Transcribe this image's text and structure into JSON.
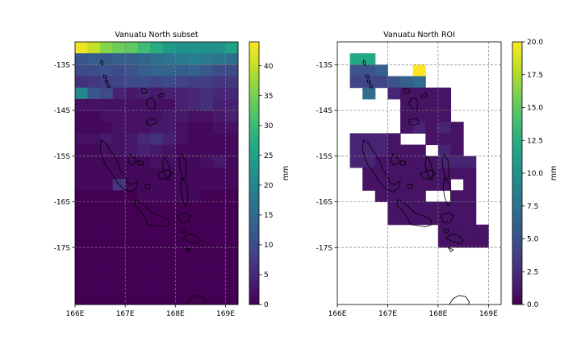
{
  "chart_data": [
    {
      "type": "heatmap",
      "title": "Vanuatu North subset",
      "xlabel": "",
      "ylabel": "",
      "xlim": [
        166.0,
        169.25
      ],
      "ylim": [
        -18.25,
        -12.5
      ],
      "x_ticks": [
        166,
        167,
        168,
        169
      ],
      "x_tick_labels": [
        "166E",
        "167E",
        "168E",
        "169E"
      ],
      "y_ticks": [
        -13,
        -14,
        -15,
        -16,
        -17
      ],
      "y_tick_labels": [
        "-13S",
        "-14S",
        "-15S",
        "-16S",
        "-17S"
      ],
      "grid": true,
      "colorbar": {
        "label": "mm",
        "min": 0,
        "max": 44,
        "ticks": [
          0,
          5,
          10,
          15,
          20,
          25,
          30,
          35,
          40
        ],
        "tick_labels": [
          "0",
          "5",
          "10",
          "15",
          "20",
          "25",
          "30",
          "35",
          "40"
        ]
      },
      "cell_size_deg": 0.25,
      "origin": {
        "lon": 166.0,
        "lat_top": -12.5
      },
      "values": [
        [
          43,
          40,
          36,
          34,
          33,
          30,
          27,
          24,
          22,
          22,
          22,
          22,
          25
        ],
        [
          12,
          13,
          12,
          13,
          13,
          14,
          16,
          17,
          18,
          19,
          18,
          17,
          16
        ],
        [
          10,
          10,
          11,
          10,
          11,
          13,
          14,
          14,
          13,
          14,
          12,
          10,
          10
        ],
        [
          6,
          7,
          8,
          9,
          10,
          10,
          9,
          10,
          9,
          8,
          8,
          7,
          7
        ],
        [
          20,
          12,
          10,
          4,
          3,
          4,
          3,
          4,
          4,
          5,
          6,
          5,
          5
        ],
        [
          2,
          2,
          2,
          2,
          2,
          2,
          2,
          2,
          4,
          5,
          6,
          4,
          4
        ],
        [
          1,
          1,
          2,
          2,
          2,
          2,
          2,
          3,
          3,
          2,
          2,
          3,
          4
        ],
        [
          1,
          1,
          1,
          2,
          2,
          2,
          3,
          3,
          2,
          1,
          1,
          2,
          2
        ],
        [
          2,
          2,
          3,
          2,
          3,
          5,
          6,
          4,
          2,
          1,
          1,
          1,
          1
        ],
        [
          1,
          1,
          2,
          2,
          3,
          4,
          3,
          2,
          1,
          1,
          1,
          1,
          1
        ],
        [
          1,
          1,
          1,
          1,
          1,
          1,
          2,
          2,
          1,
          1,
          2,
          3,
          1
        ],
        [
          1,
          1,
          1,
          1,
          1,
          1,
          1,
          1,
          1,
          1,
          1,
          1,
          1
        ],
        [
          1,
          1,
          1,
          7,
          1,
          1,
          1,
          1,
          1,
          1,
          1,
          1,
          1
        ],
        [
          0,
          0,
          0,
          0,
          0,
          1,
          1,
          1,
          1,
          1,
          0,
          0,
          0
        ],
        [
          0,
          0,
          0,
          0,
          0,
          0,
          0,
          0,
          0,
          0,
          0,
          0,
          0
        ],
        [
          0,
          0,
          0,
          0,
          0,
          0,
          0,
          0,
          0,
          0,
          0,
          0,
          0
        ],
        [
          0,
          0,
          0,
          0,
          0,
          0,
          0,
          0,
          0,
          0,
          0,
          0,
          0
        ],
        [
          0,
          0,
          0,
          0,
          0,
          0,
          0,
          0,
          0,
          0,
          0,
          0,
          0
        ],
        [
          0,
          0,
          0,
          0,
          0,
          0,
          0,
          0,
          0,
          0,
          0,
          0,
          0
        ],
        [
          0,
          0,
          0,
          0,
          0,
          0,
          0,
          0,
          0,
          0,
          0,
          0,
          0
        ],
        [
          0,
          0,
          0,
          0,
          0,
          0,
          0,
          0,
          0,
          0,
          0,
          0,
          0
        ],
        [
          0,
          0,
          0,
          0,
          0,
          0,
          0,
          0,
          0,
          0,
          0,
          0,
          0
        ],
        [
          0,
          0,
          0,
          0,
          0,
          0,
          0,
          0,
          0,
          0,
          0,
          0,
          0
        ]
      ]
    },
    {
      "type": "heatmap",
      "title": "Vanuatu North ROI",
      "xlabel": "",
      "ylabel": "",
      "xlim": [
        166.0,
        169.25
      ],
      "ylim": [
        -18.25,
        -12.5
      ],
      "x_ticks": [
        166,
        167,
        168,
        169
      ],
      "x_tick_labels": [
        "166E",
        "167E",
        "168E",
        "169E"
      ],
      "y_ticks": [
        -13,
        -14,
        -15,
        -16,
        -17
      ],
      "y_tick_labels": [
        "-13S",
        "-14S",
        "-15S",
        "-16S",
        "-17S"
      ],
      "grid": true,
      "colorbar": {
        "label": "mm",
        "min": 0,
        "max": 20,
        "ticks": [
          0,
          2.5,
          5,
          7.5,
          10,
          12.5,
          15,
          17.5,
          20
        ],
        "tick_labels": [
          "0.0",
          "2.5",
          "5.0",
          "7.5",
          "10.0",
          "12.5",
          "15.0",
          "17.5",
          "20.0"
        ]
      },
      "cell_size_deg": 0.25,
      "origin": {
        "lon": 166.0,
        "lat_top": -12.5
      },
      "values": [
        [
          null,
          null,
          null,
          null,
          null,
          null,
          null,
          null,
          null,
          null,
          null,
          null,
          null
        ],
        [
          null,
          12,
          12,
          null,
          null,
          null,
          null,
          null,
          null,
          null,
          null,
          null,
          null
        ],
        [
          null,
          5,
          5,
          6,
          null,
          null,
          20,
          null,
          null,
          null,
          null,
          null,
          null
        ],
        [
          null,
          4,
          4,
          4,
          5,
          6,
          7,
          null,
          null,
          null,
          null,
          null,
          null
        ],
        [
          null,
          null,
          7,
          null,
          2,
          1,
          1,
          1,
          1,
          null,
          null,
          null,
          null
        ],
        [
          null,
          null,
          null,
          null,
          null,
          1,
          1,
          1,
          1,
          null,
          null,
          null,
          null
        ],
        [
          null,
          null,
          null,
          null,
          null,
          1,
          1,
          1,
          1,
          null,
          null,
          null,
          null
        ],
        [
          null,
          null,
          null,
          null,
          null,
          1,
          2,
          1,
          2,
          1,
          null,
          null,
          null
        ],
        [
          null,
          2,
          2,
          2,
          1,
          null,
          null,
          1,
          1,
          1,
          null,
          null,
          null
        ],
        [
          null,
          2,
          2,
          2,
          1,
          1,
          1,
          null,
          2,
          1,
          null,
          null,
          null
        ],
        [
          null,
          2,
          2,
          1,
          1,
          1,
          1,
          1,
          2,
          2,
          2,
          null,
          null
        ],
        [
          null,
          null,
          1,
          1,
          1,
          1,
          1,
          1,
          1,
          1,
          1,
          null,
          null
        ],
        [
          null,
          null,
          1,
          1,
          1,
          1,
          1,
          1,
          1,
          null,
          1,
          null,
          null
        ],
        [
          null,
          null,
          null,
          1,
          1,
          1,
          1,
          null,
          null,
          1,
          1,
          null,
          null
        ],
        [
          null,
          null,
          null,
          null,
          1,
          1,
          1,
          1,
          1,
          1,
          1,
          null,
          null
        ],
        [
          null,
          null,
          null,
          null,
          1,
          1,
          1,
          1,
          1,
          1,
          1,
          null,
          null
        ],
        [
          null,
          null,
          null,
          null,
          null,
          null,
          null,
          null,
          1,
          1,
          1,
          1,
          null
        ],
        [
          null,
          null,
          null,
          null,
          null,
          null,
          null,
          null,
          1,
          1,
          1,
          1,
          null
        ],
        [
          null,
          null,
          null,
          null,
          null,
          null,
          null,
          null,
          null,
          null,
          null,
          null,
          null
        ],
        [
          null,
          null,
          null,
          null,
          null,
          null,
          null,
          null,
          null,
          null,
          null,
          null,
          null
        ],
        [
          null,
          null,
          null,
          null,
          null,
          null,
          null,
          null,
          null,
          null,
          null,
          null,
          null
        ],
        [
          null,
          null,
          null,
          null,
          null,
          null,
          null,
          null,
          null,
          null,
          null,
          null,
          null
        ],
        [
          null,
          null,
          null,
          null,
          null,
          null,
          null,
          null,
          null,
          null,
          null,
          null,
          null
        ]
      ]
    }
  ]
}
